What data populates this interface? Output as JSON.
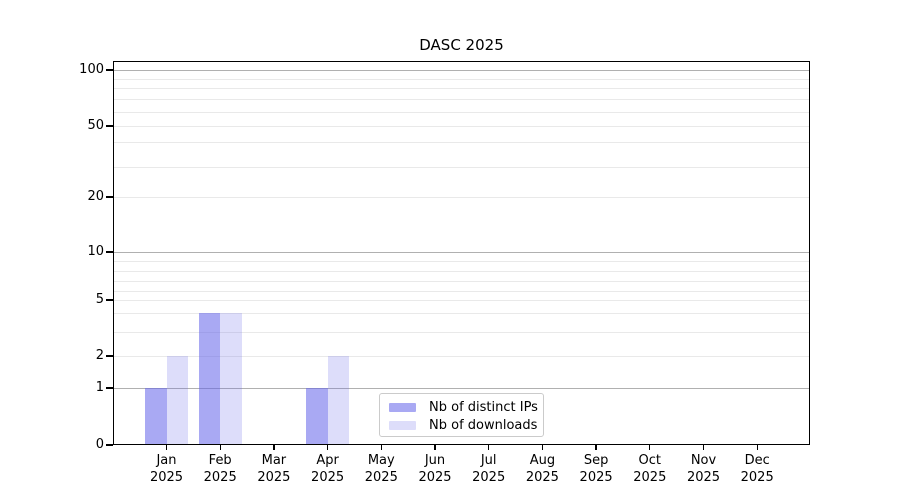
{
  "window": {
    "background": "#ffffff"
  },
  "chart_data": {
    "type": "bar",
    "title": "DASC 2025",
    "categories": [
      "Jan",
      "Feb",
      "Mar",
      "Apr",
      "May",
      "Jun",
      "Jul",
      "Aug",
      "Sep",
      "Oct",
      "Nov",
      "Dec"
    ],
    "category_year_label": "2025",
    "series": [
      {
        "name": "Nb of distinct IPs",
        "color": "rgba(99,99,233,0.55)",
        "values": [
          1,
          4,
          0,
          1,
          0,
          0,
          0,
          0,
          0,
          0,
          0,
          0
        ]
      },
      {
        "name": "Nb of downloads",
        "color": "rgba(99,99,233,0.22)",
        "values": [
          2,
          4,
          0,
          2,
          0,
          0,
          0,
          0,
          0,
          0,
          0,
          0
        ]
      }
    ],
    "xlabel": "",
    "ylabel": "",
    "yscale": "symlog",
    "ylim": [
      0,
      110
    ],
    "yticks": [
      0,
      1,
      2,
      5,
      10,
      20,
      50,
      100
    ],
    "ytick_labels": [
      "0",
      "1",
      "2",
      "5",
      "10",
      "20",
      "50",
      "100"
    ],
    "grid": {
      "on": true,
      "major_values": [
        1,
        10,
        100
      ],
      "minor_values": [
        2,
        3,
        4,
        5,
        6,
        7,
        8,
        9,
        20,
        30,
        40,
        50,
        60,
        70,
        80,
        90
      ],
      "major_color": "#b0b0b0",
      "minor_color": "#e9e9e9"
    },
    "legend_position": "lower center",
    "axis_color": "#000000",
    "text_color": "#000000"
  }
}
